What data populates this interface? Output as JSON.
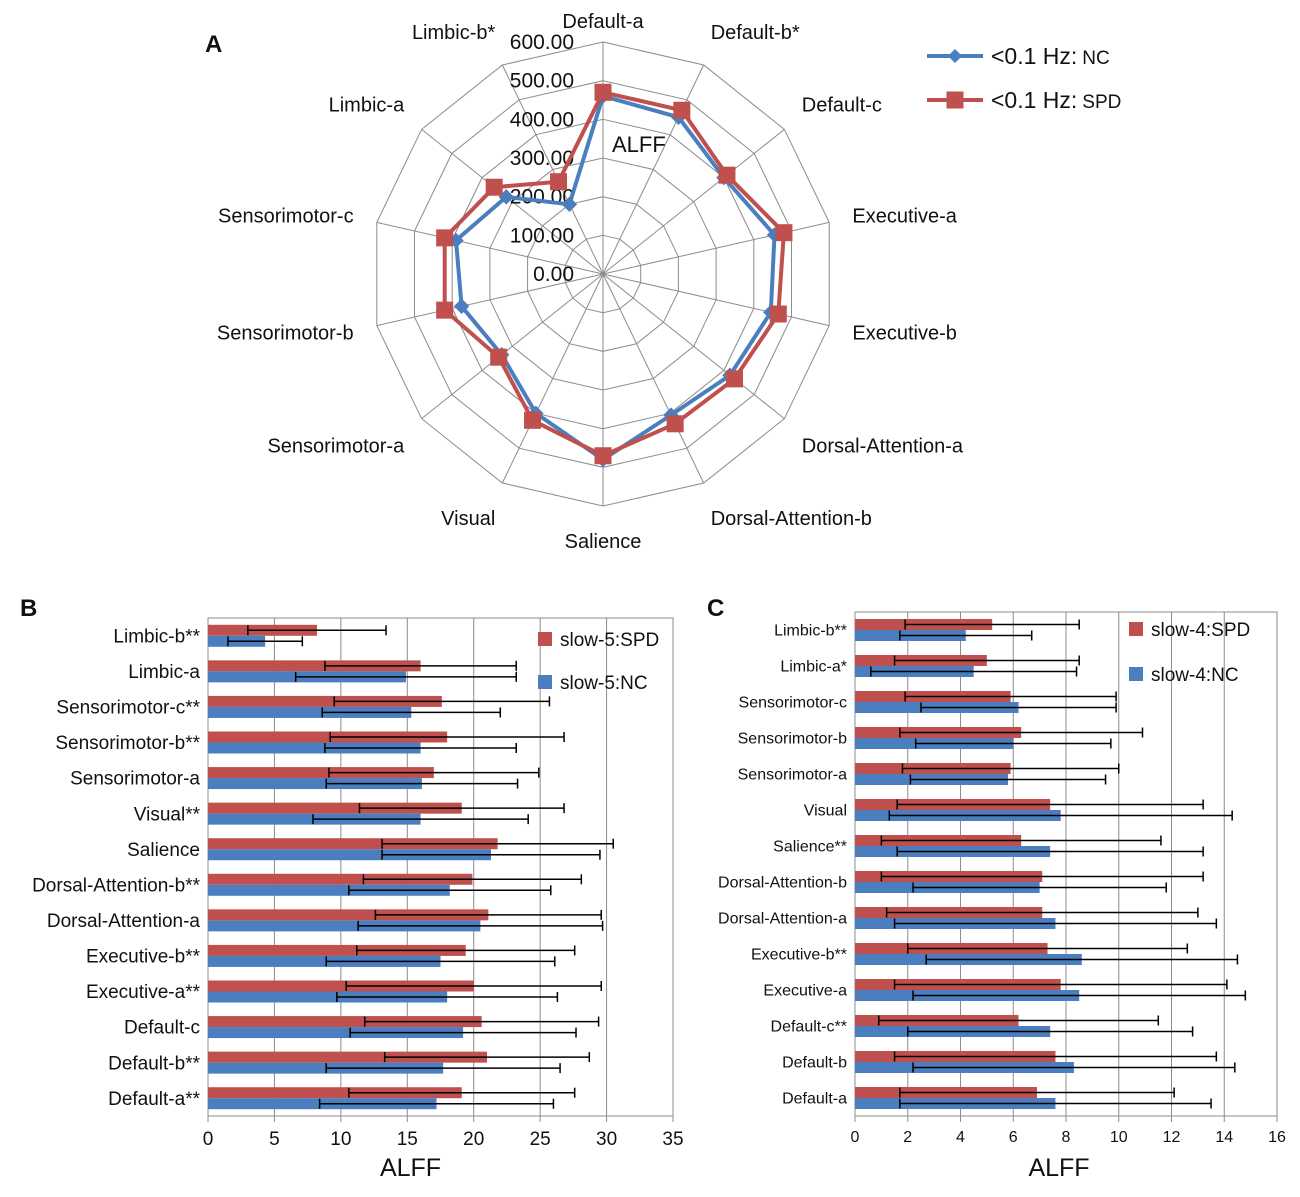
{
  "chart_data": [
    {
      "panel": "A",
      "type": "radar",
      "axis_label": "ALFF",
      "rlim": [
        0,
        600
      ],
      "ticks": [
        "0.00",
        "100.00",
        "200.00",
        "300.00",
        "400.00",
        "500.00",
        "600.00"
      ],
      "categories": [
        "Default-a",
        "Default-b*",
        "Default-c",
        "Executive-a",
        "Executive-b",
        "Dorsal-Attention-a",
        "Dorsal-Attention-b",
        "Salience",
        "Visual",
        "Sensorimotor-a",
        "Sensorimotor-b",
        "Sensorimotor-c",
        "Limbic-a",
        "Limbic-b*"
      ],
      "series": [
        {
          "name": "<0.1 Hz: NC",
          "legend_main": "<0.1 Hz:",
          "legend_sub": "NC",
          "color": "#4a7ebf",
          "values": [
            460,
            450,
            400,
            455,
            445,
            420,
            405,
            480,
            400,
            335,
            375,
            390,
            320,
            200
          ]
        },
        {
          "name": "<0.1 Hz: SPD",
          "legend_main": "<0.1 Hz:",
          "legend_sub": "SPD",
          "color": "#c0504d",
          "values": [
            470,
            470,
            410,
            480,
            465,
            435,
            430,
            470,
            420,
            345,
            420,
            420,
            360,
            265
          ]
        }
      ]
    },
    {
      "panel": "B",
      "type": "bar",
      "orientation": "horizontal",
      "xlabel": "ALFF",
      "xlim": [
        0,
        35
      ],
      "xticks": [
        "0",
        "5",
        "10",
        "15",
        "20",
        "25",
        "30",
        "35"
      ],
      "categories": [
        "Limbic-b**",
        "Limbic-a",
        "Sensorimotor-c**",
        "Sensorimotor-b**",
        "Sensorimotor-a",
        "Visual**",
        "Salience",
        "Dorsal-Attention-b**",
        "Dorsal-Attention-a",
        "Executive-b**",
        "Executive-a**",
        "Default-c",
        "Default-b**",
        "Default-a**"
      ],
      "series": [
        {
          "name": "slow-5:SPD",
          "color": "#c0504d",
          "values": [
            8.2,
            16.0,
            17.6,
            18.0,
            17.0,
            19.1,
            21.8,
            19.9,
            21.1,
            19.4,
            20.0,
            20.6,
            21.0,
            19.1
          ],
          "errors": [
            5.2,
            7.2,
            8.1,
            8.8,
            7.9,
            7.7,
            8.7,
            8.2,
            8.5,
            8.2,
            9.6,
            8.8,
            7.7,
            8.5
          ]
        },
        {
          "name": "slow-5:NC",
          "color": "#4a7ebf",
          "values": [
            4.3,
            14.9,
            15.3,
            16.0,
            16.1,
            16.0,
            21.3,
            18.2,
            20.5,
            17.5,
            18.0,
            19.2,
            17.7,
            17.2
          ],
          "errors": [
            2.8,
            8.3,
            6.7,
            7.2,
            7.2,
            8.1,
            8.2,
            7.6,
            9.2,
            8.6,
            8.3,
            8.5,
            8.8,
            8.8
          ]
        }
      ]
    },
    {
      "panel": "C",
      "type": "bar",
      "orientation": "horizontal",
      "xlabel": "ALFF",
      "xlim": [
        0,
        16
      ],
      "xticks": [
        "0",
        "2",
        "4",
        "6",
        "8",
        "10",
        "12",
        "14",
        "16"
      ],
      "categories": [
        "Limbic-b**",
        "Limbic-a*",
        "Sensorimotor-c",
        "Sensorimotor-b",
        "Sensorimotor-a",
        "Visual",
        "Salience**",
        "Dorsal-Attention-b",
        "Dorsal-Attention-a",
        "Executive-b**",
        "Executive-a",
        "Default-c**",
        "Default-b",
        "Default-a"
      ],
      "series": [
        {
          "name": "slow-4:SPD",
          "color": "#c0504d",
          "values": [
            5.2,
            5.0,
            5.9,
            6.3,
            5.9,
            7.4,
            6.3,
            7.1,
            7.1,
            7.3,
            7.8,
            6.2,
            7.6,
            6.9
          ],
          "errors": [
            3.3,
            3.5,
            4.0,
            4.6,
            4.1,
            5.8,
            5.3,
            6.1,
            5.9,
            5.3,
            6.3,
            5.3,
            6.1,
            5.2
          ]
        },
        {
          "name": "slow-4:NC",
          "color": "#4a7ebf",
          "values": [
            4.2,
            4.5,
            6.2,
            6.0,
            5.8,
            7.8,
            7.4,
            7.0,
            7.6,
            8.6,
            8.5,
            7.4,
            8.3,
            7.6
          ],
          "errors": [
            2.5,
            3.9,
            3.7,
            3.7,
            3.7,
            6.5,
            5.8,
            4.8,
            6.1,
            5.9,
            6.3,
            5.4,
            6.1,
            5.9
          ]
        }
      ]
    }
  ]
}
